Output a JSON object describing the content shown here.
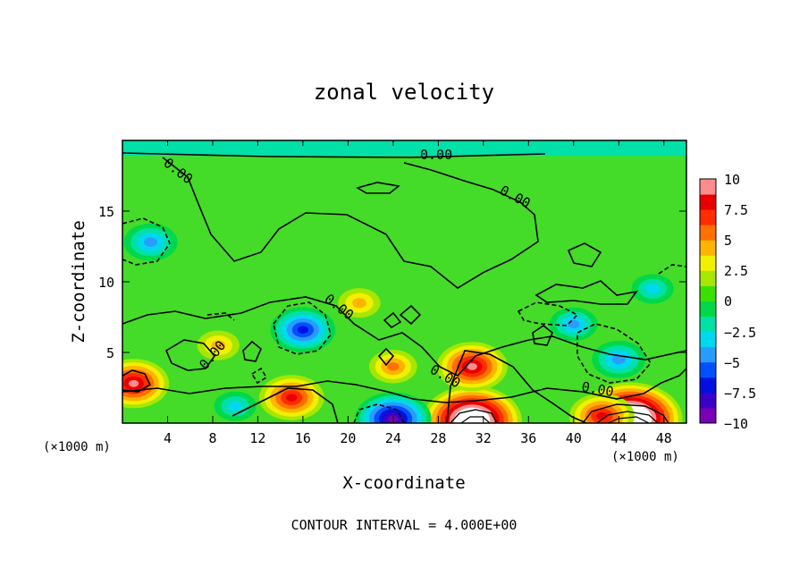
{
  "chart_data": {
    "type": "heatmap",
    "title": "zonal velocity",
    "xlabel": "X-coordinate",
    "ylabel": "Z-coordinate",
    "x_unit_left": "(×1000 m)",
    "x_unit_right": "(×1000 m)",
    "xlim": [
      0,
      50
    ],
    "ylim": [
      0,
      20
    ],
    "x_ticks": [
      "4",
      "8",
      "12",
      "16",
      "20",
      "24",
      "28",
      "32",
      "36",
      "40",
      "44",
      "48"
    ],
    "y_ticks": [
      "5",
      "10",
      "15"
    ],
    "colorbar": {
      "min": -10,
      "max": 10,
      "tick_labels": [
        "10",
        "7.5",
        "5",
        "2.5",
        "0",
        "−2.5",
        "−5",
        "−7.5",
        "−10"
      ],
      "colors": [
        "#7a00b4",
        "#3a00c8",
        "#0010e0",
        "#0050ff",
        "#2a9cff",
        "#00d8f0",
        "#00e0a8",
        "#00d84a",
        "#3ce000",
        "#a8e600",
        "#f0f000",
        "#ffb400",
        "#ff7000",
        "#ff2c00",
        "#e80000",
        "#ff8c8c"
      ]
    },
    "contour_labels": [
      "0.00",
      "0.00",
      "0.00",
      "0.00",
      "0.00",
      "0.00",
      "0.00"
    ],
    "footer": "CONTOUR INTERVAL = 4.000E+00",
    "features": [
      {
        "x": 45,
        "z": 0.3,
        "value": 14
      },
      {
        "x": 31,
        "z": 0.2,
        "value": 13
      },
      {
        "x": 31,
        "z": 4.0,
        "value": 8
      },
      {
        "x": 15,
        "z": 1.8,
        "value": 7
      },
      {
        "x": 1,
        "z": 2.8,
        "value": 8
      },
      {
        "x": 42.5,
        "z": 0.5,
        "value": 7
      },
      {
        "x": 24,
        "z": 0.3,
        "value": -9
      },
      {
        "x": 16,
        "z": 6.6,
        "value": -7
      },
      {
        "x": 2.5,
        "z": 12.8,
        "value": -5
      },
      {
        "x": 44,
        "z": 4.5,
        "value": -5
      },
      {
        "x": 40,
        "z": 7.0,
        "value": -4
      },
      {
        "x": 24,
        "z": 4.0,
        "value": 4
      },
      {
        "x": 8.5,
        "z": 5.5,
        "value": 3
      },
      {
        "x": 21,
        "z": 8.5,
        "value": 3
      },
      {
        "x": 47,
        "z": 9.5,
        "value": -3
      },
      {
        "x": 10,
        "z": 1.2,
        "value": -3
      }
    ]
  }
}
